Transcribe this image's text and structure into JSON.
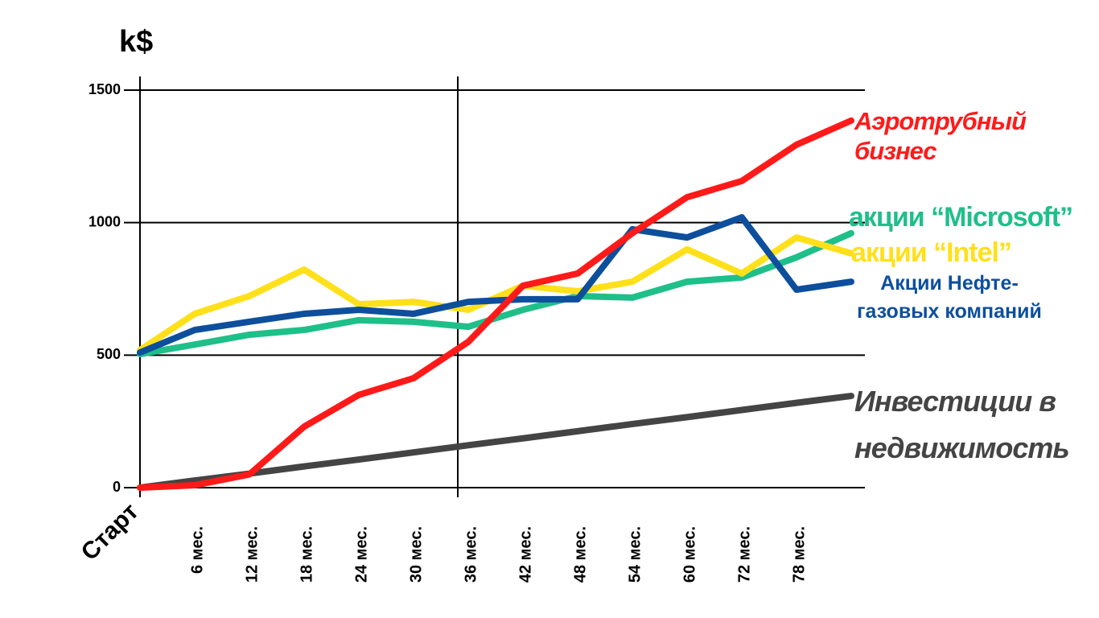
{
  "chart_data": {
    "type": "line",
    "y_label": "k$",
    "categories": [
      "Старт",
      "6 мес.",
      "12 мес.",
      "18 мес.",
      "24 мес.",
      "30 мес.",
      "36 мес.",
      "42 мес.",
      "48 мес.",
      "54 мес.",
      "60 мес.",
      "72 мес.",
      "78 мес.",
      null
    ],
    "ylim": [
      0,
      1500
    ],
    "yticks": [
      0,
      500,
      1000,
      1500
    ],
    "grid": true,
    "series": [
      {
        "name": "Аэротрубный бизнес",
        "color": "#ff1a1a",
        "values": [
          0,
          9,
          50,
          230,
          350,
          413,
          550,
          762,
          808,
          960,
          1096,
          1157,
          1294,
          1385
        ]
      },
      {
        "name": "акции “Microsoft”",
        "color": "#1fbf8a",
        "values": [
          504,
          540,
          577,
          595,
          632,
          626,
          607,
          671,
          723,
          717,
          777,
          793,
          869,
          960
        ]
      },
      {
        "name": "акции “Intel”",
        "color": "#ffe01a",
        "values": [
          519,
          656,
          723,
          823,
          692,
          701,
          671,
          762,
          741,
          777,
          899,
          808,
          944,
          884
        ]
      },
      {
        "name": "Акции Нефте-газовых компаний",
        "color": "#0d4f9c",
        "values": [
          510,
          595,
          626,
          656,
          671,
          656,
          701,
          711,
          711,
          975,
          944,
          1020,
          747,
          777
        ]
      },
      {
        "name": "Инвестиции в недвижимость",
        "color": "#444444",
        "values": [
          0,
          27,
          53,
          80,
          106,
          133,
          160,
          186,
          213,
          240,
          266,
          293,
          320,
          346
        ]
      }
    ]
  }
}
